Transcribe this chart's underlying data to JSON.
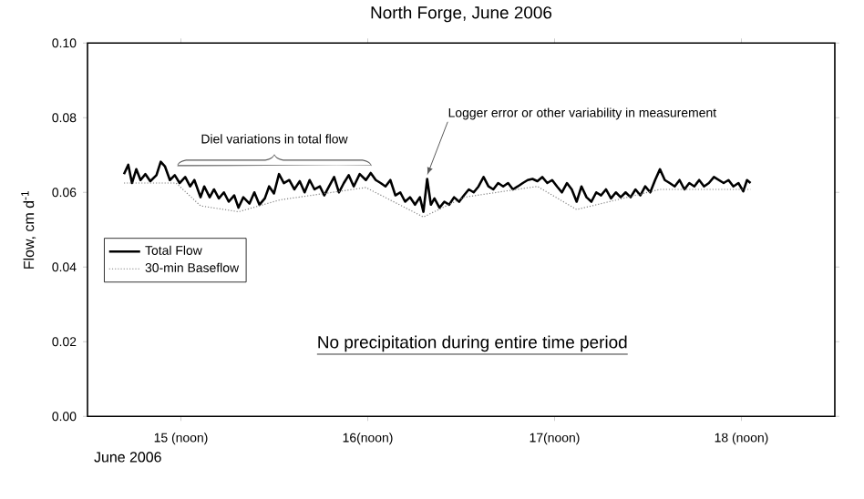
{
  "chart_data": {
    "type": "line",
    "title": "North Forge, June 2006",
    "xlabel": "June 2006",
    "ylabel": "Flow, cm d$^{-1}$",
    "xlim": [
      15.0,
      19.0
    ],
    "xticks": [
      {
        "value": 15.5,
        "label": "15 (noon)"
      },
      {
        "value": 16.5,
        "label": "16(noon)"
      },
      {
        "value": 17.5,
        "label": "17(noon)"
      },
      {
        "value": 18.5,
        "label": "18 (noon)"
      }
    ],
    "ylim": [
      0,
      0.1
    ],
    "yticks": [
      {
        "value": 0,
        "label": "0.00"
      },
      {
        "value": 0.02,
        "label": "0.02"
      },
      {
        "value": 0.04,
        "label": "0.04"
      },
      {
        "value": 0.06,
        "label": "0.06"
      },
      {
        "value": 0.08,
        "label": "0.08"
      },
      {
        "value": 0.1,
        "label": "0.10"
      }
    ],
    "grid": false,
    "legend": "left",
    "marker": "none",
    "annotations": [
      "Diel variations in total flow",
      {
        "text": "Logger error or other variability in measurement",
        "x": 16.818,
        "y": 0.0636
      },
      "No precipitation during entire time period"
    ],
    "series": [
      {
        "name": "Total Flow",
        "color": "#000000",
        "line_style": "solid",
        "x": [
          15.195,
          15.218,
          15.238,
          15.261,
          15.284,
          15.31,
          15.336,
          15.369,
          15.392,
          15.415,
          15.441,
          15.467,
          15.493,
          15.523,
          15.549,
          15.572,
          15.605,
          15.625,
          15.654,
          15.677,
          15.703,
          15.73,
          15.756,
          15.785,
          15.808,
          15.834,
          15.867,
          15.893,
          15.92,
          15.949,
          15.972,
          15.998,
          16.025,
          16.051,
          16.08,
          16.107,
          16.136,
          16.162,
          16.189,
          16.215,
          16.244,
          16.267,
          16.293,
          16.32,
          16.346,
          16.372,
          16.398,
          16.425,
          16.457,
          16.49,
          16.516,
          16.543,
          16.569,
          16.595,
          16.621,
          16.648,
          16.674,
          16.7,
          16.726,
          16.753,
          16.779,
          16.798,
          16.818,
          16.838,
          16.857,
          16.884,
          16.91,
          16.936,
          16.962,
          16.989,
          17.015,
          17.041,
          17.067,
          17.093,
          17.12,
          17.146,
          17.172,
          17.198,
          17.225,
          17.251,
          17.277,
          17.303,
          17.33,
          17.356,
          17.382,
          17.408,
          17.434,
          17.461,
          17.487,
          17.513,
          17.539,
          17.566,
          17.592,
          17.618,
          17.644,
          17.671,
          17.697,
          17.723,
          17.749,
          17.775,
          17.802,
          17.828,
          17.854,
          17.88,
          17.907,
          17.933,
          17.959,
          17.985,
          18.012,
          18.038,
          18.064,
          18.09,
          18.116,
          18.143,
          18.169,
          18.195,
          18.221,
          18.248,
          18.274,
          18.3,
          18.326,
          18.353,
          18.379,
          18.405,
          18.431,
          18.457,
          18.484,
          18.51,
          18.53,
          18.549
        ],
        "values": [
          0.0649,
          0.0674,
          0.0625,
          0.0662,
          0.0633,
          0.0649,
          0.063,
          0.0646,
          0.0682,
          0.0669,
          0.0633,
          0.0646,
          0.0625,
          0.0641,
          0.0616,
          0.0633,
          0.0587,
          0.0616,
          0.0587,
          0.0608,
          0.0584,
          0.06,
          0.0575,
          0.0592,
          0.0559,
          0.0587,
          0.057,
          0.06,
          0.0567,
          0.0584,
          0.0616,
          0.0597,
          0.0649,
          0.0625,
          0.0633,
          0.0608,
          0.063,
          0.06,
          0.0633,
          0.0608,
          0.0616,
          0.0592,
          0.0616,
          0.0641,
          0.06,
          0.0625,
          0.0646,
          0.0616,
          0.0649,
          0.0633,
          0.0652,
          0.0633,
          0.0625,
          0.0616,
          0.0633,
          0.0592,
          0.06,
          0.0575,
          0.0587,
          0.0567,
          0.0587,
          0.0548,
          0.0636,
          0.0567,
          0.0584,
          0.0559,
          0.0575,
          0.0567,
          0.0587,
          0.0575,
          0.0592,
          0.0608,
          0.06,
          0.0616,
          0.0641,
          0.0616,
          0.0608,
          0.0625,
          0.0616,
          0.0625,
          0.0608,
          0.0616,
          0.0625,
          0.0633,
          0.0636,
          0.063,
          0.0641,
          0.0625,
          0.0633,
          0.0616,
          0.06,
          0.0625,
          0.0608,
          0.0575,
          0.0616,
          0.0587,
          0.0575,
          0.06,
          0.0592,
          0.0608,
          0.0584,
          0.06,
          0.0587,
          0.06,
          0.0587,
          0.0608,
          0.0592,
          0.0616,
          0.06,
          0.0633,
          0.0662,
          0.0633,
          0.0625,
          0.0616,
          0.0633,
          0.0608,
          0.0625,
          0.0616,
          0.0633,
          0.0616,
          0.0625,
          0.0641,
          0.0633,
          0.0625,
          0.0633,
          0.0616,
          0.0625,
          0.0603,
          0.0633,
          0.0625
        ]
      },
      {
        "name": "30-min Baseflow",
        "color": "#808080",
        "line_style": "dotted",
        "x": [
          15.195,
          15.474,
          15.605,
          15.808,
          16.031,
          16.49,
          16.798,
          17.015,
          17.408,
          17.618,
          17.834,
          18.064,
          18.549
        ],
        "values": [
          0.0625,
          0.0625,
          0.0564,
          0.0548,
          0.058,
          0.0613,
          0.0534,
          0.0587,
          0.0616,
          0.0554,
          0.058,
          0.0608,
          0.0608
        ]
      }
    ]
  }
}
